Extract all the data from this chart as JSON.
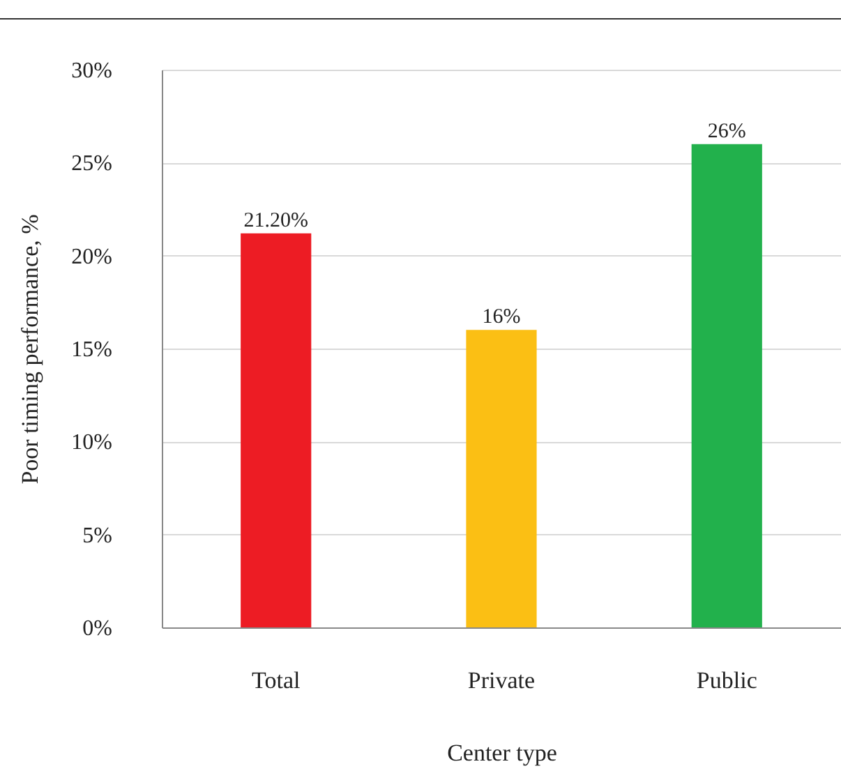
{
  "chart_data": {
    "type": "bar",
    "xlabel": "Center type",
    "ylabel": "Poor timing performance, %",
    "categories": [
      "Total",
      "Private",
      "Public"
    ],
    "values": [
      21.2,
      16,
      26
    ],
    "colors": [
      "#ed1c24",
      "#fbbf14",
      "#22b14c"
    ],
    "value_labels": [
      "21.20%",
      "16%",
      "26%"
    ],
    "ylim": [
      0,
      30
    ],
    "yticks": [
      {
        "value": 0,
        "label": "0%"
      },
      {
        "value": 5,
        "label": "5%"
      },
      {
        "value": 10,
        "label": "10%"
      },
      {
        "value": 15,
        "label": "15%"
      },
      {
        "value": 20,
        "label": "20%"
      },
      {
        "value": 25,
        "label": "25%"
      },
      {
        "value": 30,
        "label": "30%"
      }
    ],
    "grid": "y"
  }
}
